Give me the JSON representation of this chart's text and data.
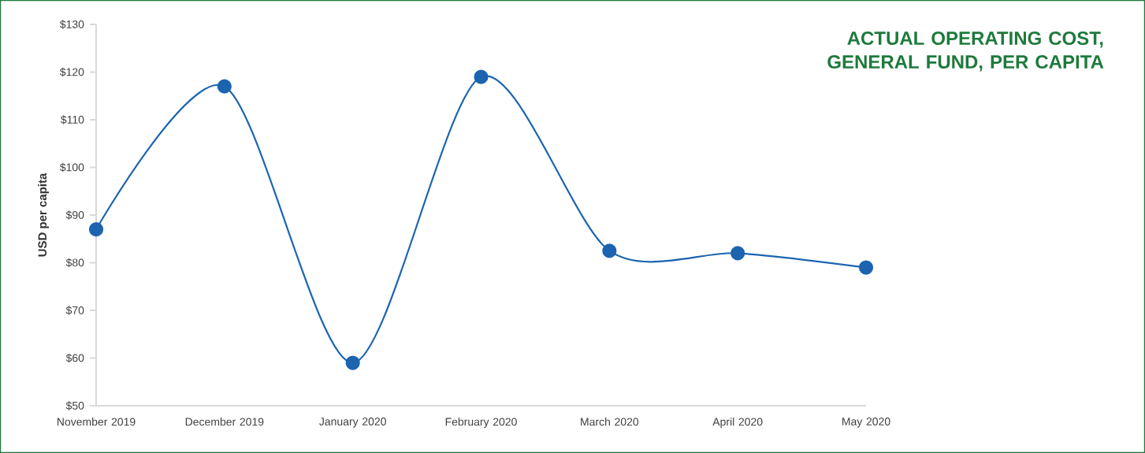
{
  "chart_data": {
    "type": "line",
    "title": "ACTUAL OPERATING COST, GENERAL FUND, PER CAPITA",
    "ylabel": "USD per capita",
    "categories": [
      "November 2019",
      "December 2019",
      "January 2020",
      "February 2020",
      "March 2020",
      "April 2020",
      "May 2020"
    ],
    "values": [
      87,
      117,
      59,
      119,
      82.5,
      82,
      79
    ],
    "color": "#1c64b0",
    "ylim": [
      50,
      130
    ],
    "yticks": [
      {
        "value": 50,
        "label": "$50"
      },
      {
        "value": 60,
        "label": "$60"
      },
      {
        "value": 70,
        "label": "$70"
      },
      {
        "value": 80,
        "label": "$80"
      },
      {
        "value": 90,
        "label": "$90"
      },
      {
        "value": 100,
        "label": "$100"
      },
      {
        "value": 110,
        "label": "$110"
      },
      {
        "value": 120,
        "label": "$120"
      },
      {
        "value": 130,
        "label": "$130"
      }
    ],
    "marker": "circle",
    "line_style": "solid",
    "grid": false
  }
}
